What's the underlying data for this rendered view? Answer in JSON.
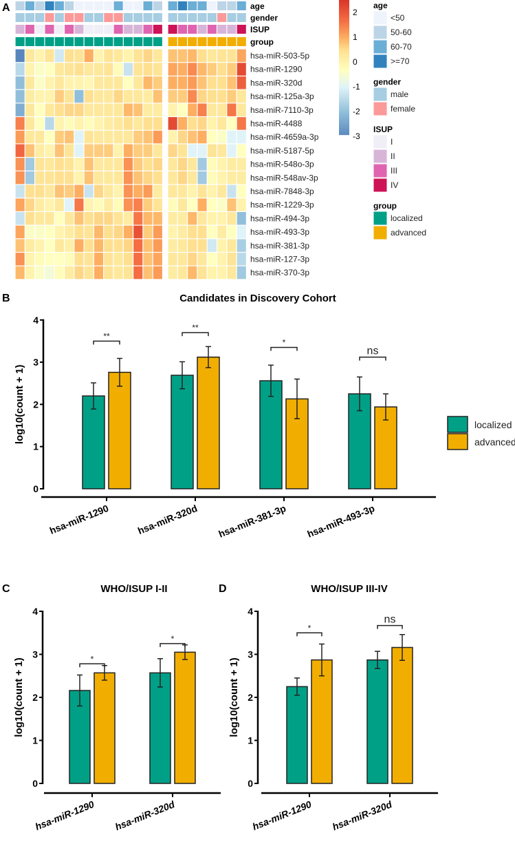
{
  "panels": {
    "A": "A",
    "B": "B",
    "C": "C",
    "D": "D"
  },
  "colors": {
    "localized": "#00a087",
    "advanced": "#f2ae00",
    "age": {
      "<50": "#eef3fc",
      "50-60": "#bcd5e6",
      "60-70": "#6baed6",
      ">=70": "#3182bd"
    },
    "gender": {
      "male": "#a6cde1",
      "female": "#fb9a99"
    },
    "ISUP": {
      "I": "#f0eef6",
      "II": "#d7b5d8",
      "III": "#df65b0",
      "IV": "#ce1256"
    }
  },
  "chart_data": [
    {
      "type": "heatmap",
      "panel": "A",
      "colorbar": {
        "ticks": [
          2,
          1,
          0,
          -1,
          -2,
          -3
        ],
        "range": [
          -3.3,
          2.6
        ]
      },
      "annotation_rows": [
        "age",
        "gender",
        "ISUP",
        "group"
      ],
      "legend": [
        {
          "title": "age",
          "items": [
            "<50",
            "50-60",
            "60-70",
            ">=70"
          ]
        },
        {
          "title": "gender",
          "items": [
            "male",
            "female"
          ]
        },
        {
          "title": "ISUP",
          "items": [
            "I",
            "II",
            "III",
            "IV"
          ]
        },
        {
          "title": "group",
          "items": [
            "localized",
            "advanced"
          ]
        }
      ],
      "columns": {
        "localized": {
          "age": [
            "50-60",
            "60-70",
            "50-60",
            ">=70",
            "60-70",
            "50-60",
            "<50",
            "<50",
            "<50",
            "<50",
            "60-70",
            "<50",
            "<50",
            "60-70",
            "50-60"
          ],
          "gender": [
            "male",
            "male",
            "male",
            "female",
            "male",
            "female",
            "female",
            "male",
            "male",
            "female",
            "female",
            "male",
            "male",
            "male",
            "male"
          ],
          "ISUP": [
            "II",
            "III",
            "I",
            "III",
            "I",
            "III",
            "II",
            "I",
            "I",
            "I",
            "III",
            "II",
            "II",
            "III",
            "IV"
          ]
        },
        "advanced": {
          "age": [
            "60-70",
            ">=70",
            "60-70",
            "60-70",
            "<50",
            "50-60",
            "50-60",
            "60-70"
          ],
          "gender": [
            "male",
            "male",
            "male",
            "male",
            "male",
            "female",
            "male",
            "male"
          ],
          "ISUP": [
            "IV",
            "III",
            "III",
            "II",
            "III",
            "II",
            "II",
            "IV"
          ]
        }
      },
      "rows": [
        {
          "name": "hsa-miR-503-5p",
          "localized": [
            -3,
            0.3,
            0,
            0.4,
            -1.2,
            0.5,
            0.4,
            1,
            0,
            0.4,
            0.3,
            0,
            0.4,
            0.6,
            0.3
          ],
          "advanced": [
            0.8,
            0.8,
            0.9,
            0.5,
            0.3,
            0.4,
            0.4,
            1.1
          ]
        },
        {
          "name": "hsa-miR-1290",
          "localized": [
            -1.5,
            0,
            -0.4,
            -0.3,
            0.3,
            0.4,
            0.5,
            0.3,
            0.3,
            0.4,
            -0.2,
            -1.3,
            0.4,
            0.5,
            0.4
          ],
          "advanced": [
            1.1,
            1,
            1.4,
            0.9,
            0.7,
            0.5,
            0.7,
            2.2
          ]
        },
        {
          "name": "hsa-miR-320d",
          "localized": [
            -2,
            0.3,
            -0.4,
            0,
            0.3,
            0,
            0,
            -0.1,
            0.3,
            0.3,
            0.3,
            -0.3,
            0.3,
            0.9,
            0.7
          ],
          "advanced": [
            1,
            1,
            1.2,
            0.8,
            0.5,
            0.5,
            0.8,
            1.9
          ]
        },
        {
          "name": "hsa-miR-125a-3p",
          "localized": [
            -2,
            0.2,
            0,
            0,
            0.7,
            0.4,
            -2,
            0.5,
            0.3,
            0.3,
            0.6,
            0.3,
            0.3,
            0.2,
            0.8
          ],
          "advanced": [
            0.7,
            0.7,
            1.4,
            0.6,
            0.5,
            0.5,
            0.7,
            0.3
          ]
        },
        {
          "name": "hsa-miR-7110-3p",
          "localized": [
            -2.3,
            0.3,
            -0.3,
            0.3,
            0.5,
            0.6,
            0.6,
            0.3,
            0.3,
            0.3,
            0.3,
            0.9,
            0.8,
            0.2,
            0.2
          ],
          "advanced": [
            0,
            -0.3,
            1,
            1.5,
            0.3,
            0.3,
            1.6,
            0.3
          ]
        },
        {
          "name": "hsa-miR-4488",
          "localized": [
            1.5,
            0.3,
            -0.3,
            -1.5,
            0,
            -0.2,
            0,
            -0.2,
            0,
            0.2,
            0.3,
            0.5,
            0.3,
            0.5,
            0.5
          ],
          "advanced": [
            2.2,
            1,
            0.5,
            0.6,
            0,
            0.3,
            -0.3,
            1.6
          ]
        },
        {
          "name": "hsa-miR-4659a-3p",
          "localized": [
            1.2,
            0.3,
            0.3,
            -0.3,
            0.7,
            0.8,
            -1,
            0.4,
            0.3,
            0.3,
            0.3,
            0.3,
            0.7,
            0.8,
            1.2
          ],
          "advanced": [
            0,
            0.6,
            0.8,
            1,
            -0.3,
            -0.4,
            -1,
            -1
          ]
        },
        {
          "name": "hsa-miR-5187-5p",
          "localized": [
            1.8,
            0.8,
            0.2,
            0,
            0.8,
            0.4,
            -1,
            0.7,
            0.7,
            0.7,
            0,
            1,
            0.7,
            0.7,
            0.3
          ],
          "advanced": [
            0.6,
            0.4,
            -1,
            -1,
            0.4,
            0.3,
            -1,
            -0.3
          ]
        },
        {
          "name": "hsa-miR-548o-3p",
          "localized": [
            1.3,
            -1.8,
            0.4,
            0.3,
            0.5,
            0.4,
            0,
            0.8,
            0.3,
            0.3,
            0.3,
            1.3,
            0.7,
            0.5,
            0.6
          ],
          "advanced": [
            0.3,
            0.6,
            0.3,
            -1.8,
            -0.2,
            0,
            0.2,
            0.2
          ]
        },
        {
          "name": "hsa-miR-548av-3p",
          "localized": [
            1.3,
            -1.8,
            0.4,
            0.4,
            0.5,
            0.5,
            0,
            0.8,
            0.3,
            0.3,
            0.3,
            1.3,
            0.8,
            0.6,
            0.5
          ],
          "advanced": [
            0.3,
            0.6,
            0.3,
            -1.8,
            -0.2,
            0,
            0.2,
            0.2
          ]
        },
        {
          "name": "hsa-miR-7848-3p",
          "localized": [
            -1.3,
            0.5,
            0.5,
            0.3,
            0.8,
            0.7,
            1,
            -1.3,
            0.6,
            0.3,
            0,
            1.3,
            1,
            1.2,
            0.2
          ],
          "advanced": [
            0.3,
            0.3,
            0,
            0.4,
            0,
            0.3,
            -1.3,
            -0.3
          ]
        },
        {
          "name": "hsa-miR-1229-3p",
          "localized": [
            1.1,
            0.6,
            0.2,
            0,
            0.3,
            -1,
            1.6,
            0,
            -0.2,
            0.2,
            -0.2,
            1.3,
            1.5,
            0.7,
            0.4
          ],
          "advanced": [
            -0.2,
            0.3,
            -0.3,
            1,
            -0.3,
            -0.4,
            0.8,
            0
          ]
        },
        {
          "name": "hsa-miR-494-3p",
          "localized": [
            -1.3,
            0.5,
            0.3,
            0.3,
            -0.3,
            0.3,
            0.8,
            0.5,
            0.6,
            0.6,
            0.4,
            0.2,
            1.6,
            0.9,
            0.9
          ],
          "advanced": [
            0.2,
            0.2,
            0.9,
            0.3,
            0,
            0,
            0.3,
            -2
          ]
        },
        {
          "name": "hsa-miR-493-3p",
          "localized": [
            1.1,
            -0.4,
            -0.4,
            -0.3,
            0,
            0.2,
            0.5,
            0.4,
            0.9,
            0.5,
            0.6,
            1,
            2.1,
            0.7,
            1.2
          ],
          "advanced": [
            0,
            0.2,
            0.5,
            0.5,
            -0.3,
            0.2,
            -0.3,
            -1
          ]
        },
        {
          "name": "hsa-miR-381-3p",
          "localized": [
            0.8,
            0.2,
            0,
            -0.3,
            0.3,
            0.1,
            1,
            0.5,
            0.9,
            0.5,
            0.5,
            0.6,
            1.7,
            0.8,
            1.2
          ],
          "advanced": [
            0.2,
            0.3,
            0.5,
            0.5,
            -1.2,
            0,
            0.3,
            -1.7
          ]
        },
        {
          "name": "hsa-miR-127-3p",
          "localized": [
            1.3,
            0,
            -0.2,
            -0.3,
            -0.3,
            -0.2,
            0.5,
            0.4,
            1,
            0.4,
            0.3,
            0.5,
            1.7,
            0.8,
            1.1
          ],
          "advanced": [
            0.3,
            0.3,
            0.6,
            0.3,
            -0.3,
            0,
            0.4,
            -1.5
          ]
        },
        {
          "name": "hsa-miR-370-3p",
          "localized": [
            0.9,
            0,
            -0.4,
            -0.6,
            -0.2,
            0.2,
            0.6,
            0.4,
            1,
            0.4,
            0.3,
            0.4,
            1.7,
            0.8,
            1.2
          ],
          "advanced": [
            0.2,
            0.3,
            0.9,
            0.4,
            0,
            0,
            0.3,
            -1.8
          ]
        }
      ]
    },
    {
      "type": "bar",
      "panel": "B",
      "title": "Candidates in Discovery Cohort",
      "ylabel": "log10(count + 1)",
      "ylim": [
        0,
        4
      ],
      "yticks": [
        0,
        1,
        2,
        3,
        4
      ],
      "categories": [
        "hsa-miR-1290",
        "hsa-miR-320d",
        "hsa-miR-381-3p",
        "hsa-miR-493-3p"
      ],
      "series": [
        {
          "name": "localized",
          "values": [
            2.2,
            2.69,
            2.56,
            2.25
          ],
          "errors": [
            0.31,
            0.32,
            0.37,
            0.4
          ]
        },
        {
          "name": "advanced",
          "values": [
            2.76,
            3.12,
            2.13,
            1.94
          ],
          "errors": [
            0.33,
            0.25,
            0.47,
            0.31
          ]
        }
      ],
      "significance": [
        {
          "label": "**",
          "y": 3.5
        },
        {
          "label": "**",
          "y": 3.7
        },
        {
          "label": "*",
          "y": 3.35
        },
        {
          "label": "ns",
          "y": 3.12
        }
      ],
      "legend": [
        "localized",
        "advanced"
      ],
      "legend_position": "right"
    },
    {
      "type": "bar",
      "panel": "C",
      "title": "WHO/ISUP I-II",
      "ylabel": "log10(count + 1)",
      "ylim": [
        0,
        4
      ],
      "yticks": [
        0,
        1,
        2,
        3,
        4
      ],
      "categories": [
        "hsa-miR-1290",
        "hsa-miR-320d"
      ],
      "series": [
        {
          "name": "localized",
          "values": [
            2.16,
            2.57
          ],
          "errors": [
            0.36,
            0.33
          ]
        },
        {
          "name": "advanced",
          "values": [
            2.57,
            3.05
          ],
          "errors": [
            0.17,
            0.17
          ]
        }
      ],
      "significance": [
        {
          "label": "*",
          "y": 2.78
        },
        {
          "label": "*",
          "y": 3.25
        }
      ]
    },
    {
      "type": "bar",
      "panel": "D",
      "title": "WHO/ISUP III-IV",
      "ylabel": "log10(count + 1)",
      "ylim": [
        0,
        4
      ],
      "yticks": [
        0,
        1,
        2,
        3,
        4
      ],
      "categories": [
        "hsa-miR-1290",
        "hsa-miR-320d"
      ],
      "series": [
        {
          "name": "localized",
          "values": [
            2.25,
            2.87
          ],
          "errors": [
            0.2,
            0.2
          ]
        },
        {
          "name": "advanced",
          "values": [
            2.87,
            3.16
          ],
          "errors": [
            0.37,
            0.3
          ]
        }
      ],
      "significance": [
        {
          "label": "*",
          "y": 3.5
        },
        {
          "label": "ns",
          "y": 3.67
        }
      ]
    }
  ]
}
